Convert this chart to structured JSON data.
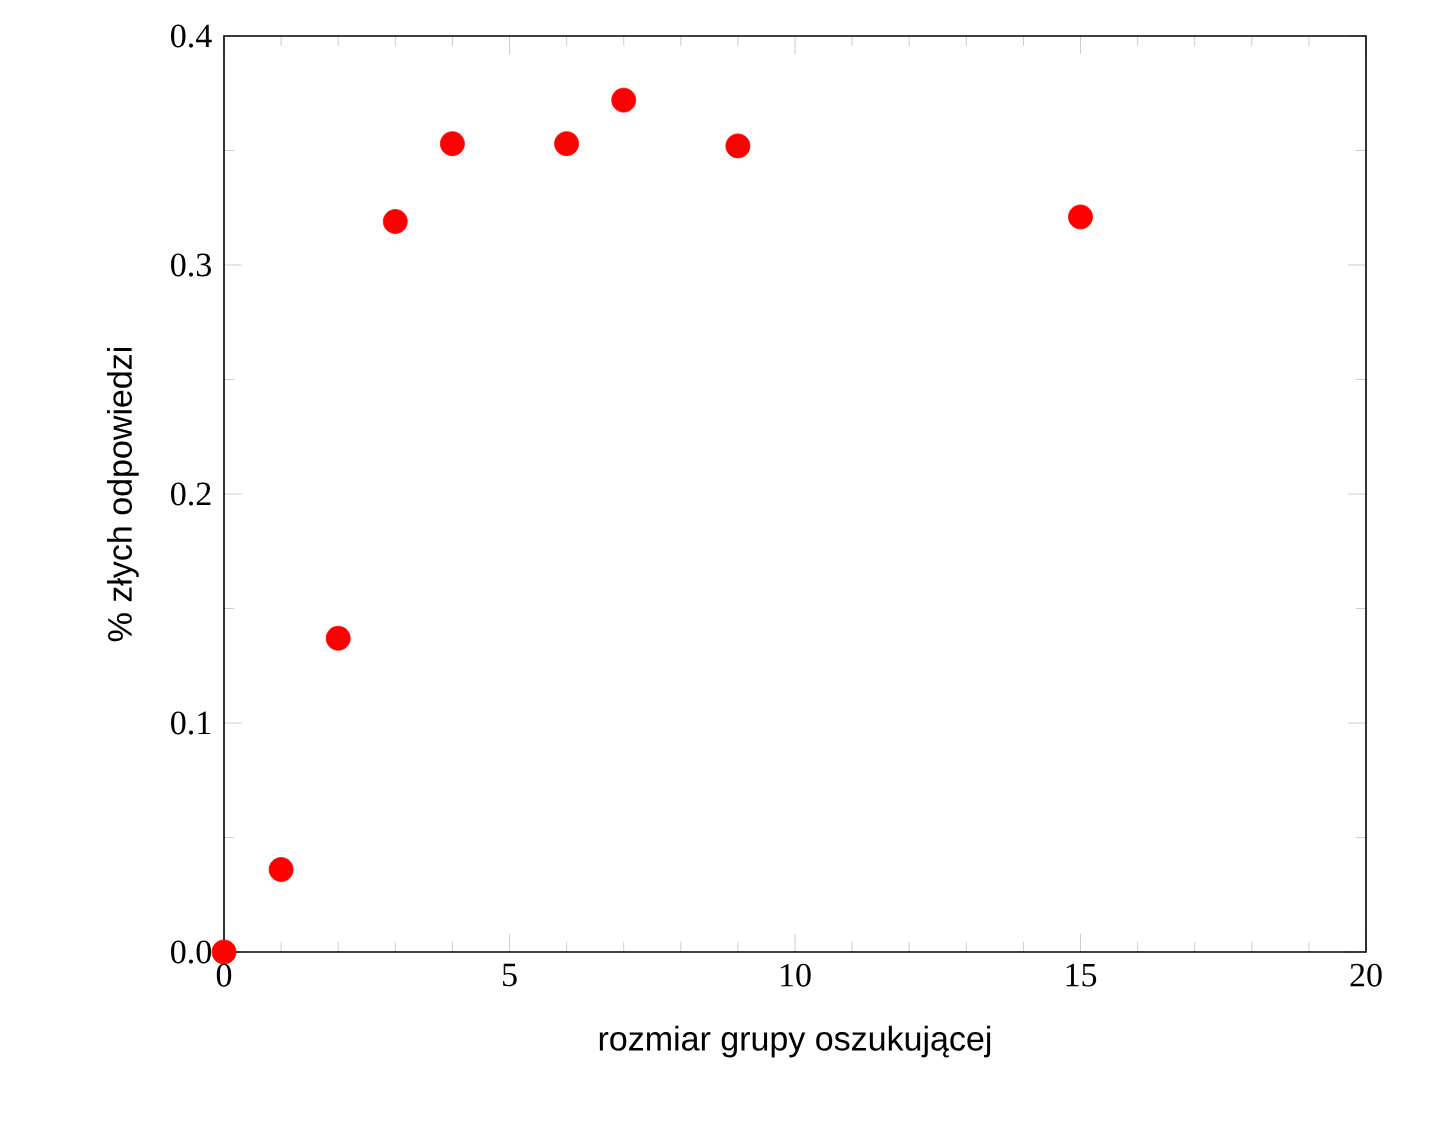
{
  "chart_data": {
    "type": "scatter",
    "xlabel": "rozmiar grupy oszukującej",
    "ylabel": "% złych odpowiedzi",
    "x": [
      0,
      1,
      2,
      3,
      4,
      6,
      7,
      9,
      15
    ],
    "series": [
      {
        "color": "#ff0000",
        "values": [
          0.0,
          0.036,
          0.137,
          0.319,
          0.353,
          0.353,
          0.372,
          0.352,
          0.321
        ]
      }
    ],
    "xlim": [
      0,
      20
    ],
    "ylim": [
      0,
      0.4
    ],
    "xticks": [
      0,
      5,
      10,
      15,
      20
    ],
    "yticks": [
      {
        "value": 0,
        "label": "0.0"
      },
      0.1,
      0.2,
      0.3,
      0.4
    ],
    "grid": false
  }
}
